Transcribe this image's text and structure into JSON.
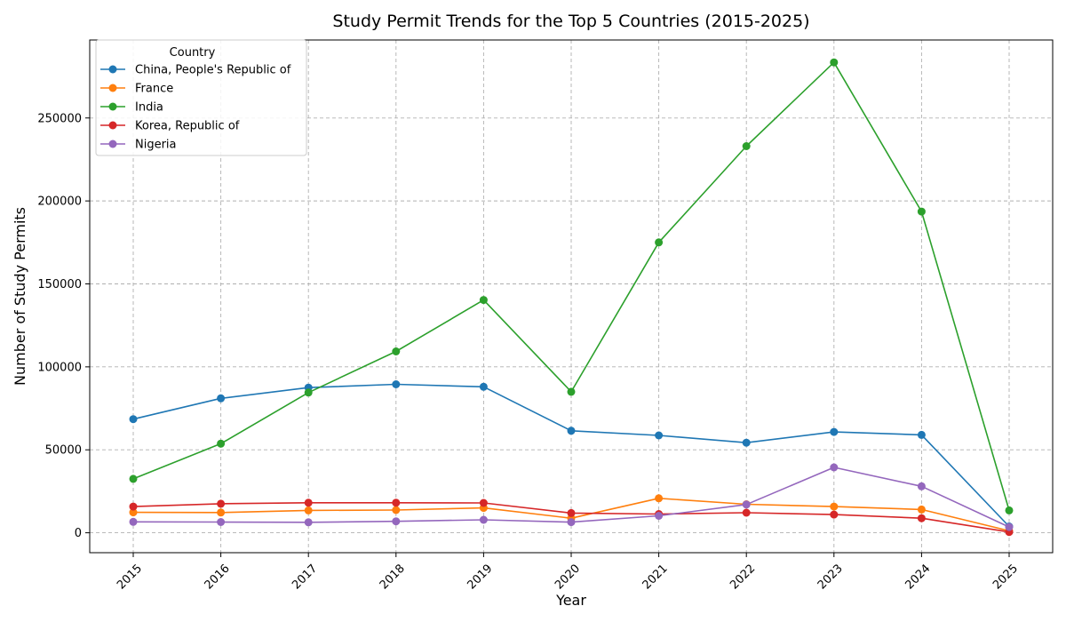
{
  "chart_data": {
    "type": "line",
    "title": "Study Permit Trends for the Top 5 Countries (2015-2025)",
    "xlabel": "Year",
    "ylabel": "Number of Study Permits",
    "x": [
      "2015",
      "2016",
      "2017",
      "2018",
      "2019",
      "2020",
      "2021",
      "2022",
      "2023",
      "2024",
      "2025"
    ],
    "ylim": [
      -12000,
      297000
    ],
    "yticks": [
      0,
      50000,
      100000,
      150000,
      200000,
      250000
    ],
    "ytick_labels": [
      "0",
      "50000",
      "100000",
      "150000",
      "200000",
      "250000"
    ],
    "grid": true,
    "legend": {
      "title": "Country",
      "placement": "top-left"
    },
    "series": [
      {
        "name": "China, People's Republic of",
        "color": "#1f77b4",
        "values": [
          68500,
          81000,
          87500,
          89500,
          88000,
          61500,
          58700,
          54300,
          60800,
          59000,
          3800
        ]
      },
      {
        "name": "France",
        "color": "#ff7f0e",
        "values": [
          12300,
          12200,
          13500,
          13700,
          15000,
          8800,
          20800,
          17200,
          15800,
          14000,
          1200
        ]
      },
      {
        "name": "India",
        "color": "#2ca02c",
        "values": [
          32500,
          53700,
          84500,
          109300,
          140300,
          85000,
          175000,
          233000,
          283500,
          193600,
          13500
        ]
      },
      {
        "name": "Korea, Republic of",
        "color": "#d62728",
        "values": [
          15800,
          17500,
          18100,
          18100,
          18000,
          11900,
          11300,
          12100,
          11000,
          8800,
          500
        ]
      },
      {
        "name": "Nigeria",
        "color": "#9467bd",
        "values": [
          6600,
          6500,
          6300,
          6900,
          7800,
          6400,
          10200,
          17000,
          39400,
          28000,
          3500
        ]
      }
    ]
  }
}
